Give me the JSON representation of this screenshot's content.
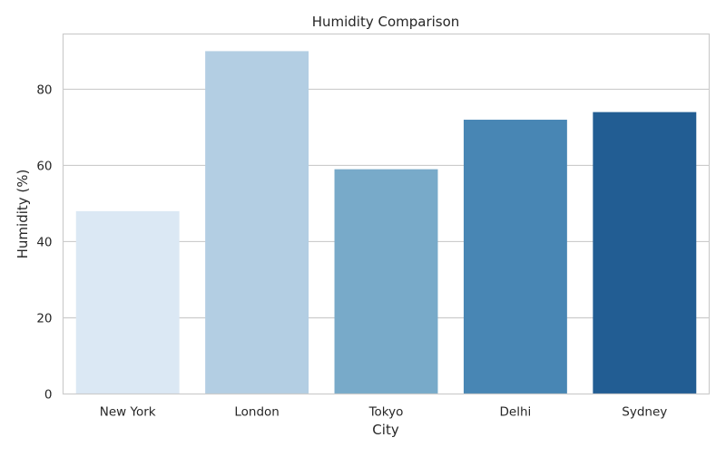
{
  "chart_data": {
    "type": "bar",
    "title": "Humidity Comparison",
    "xlabel": "City",
    "ylabel": "Humidity (%)",
    "categories": [
      "New York",
      "London",
      "Tokyo",
      "Delhi",
      "Sydney"
    ],
    "values": [
      48,
      90,
      59,
      72,
      74
    ],
    "colors": [
      "#dbe8f4",
      "#b3cee3",
      "#78aac9",
      "#4886b4",
      "#225d93"
    ],
    "ylim": [
      0,
      94.5
    ],
    "yticks": [
      0,
      20,
      40,
      60,
      80
    ],
    "grid": "y",
    "legend": "none"
  },
  "style": {
    "background": "#ffffff",
    "grid_color": "#cccccc",
    "axis_color": "#cccccc"
  }
}
